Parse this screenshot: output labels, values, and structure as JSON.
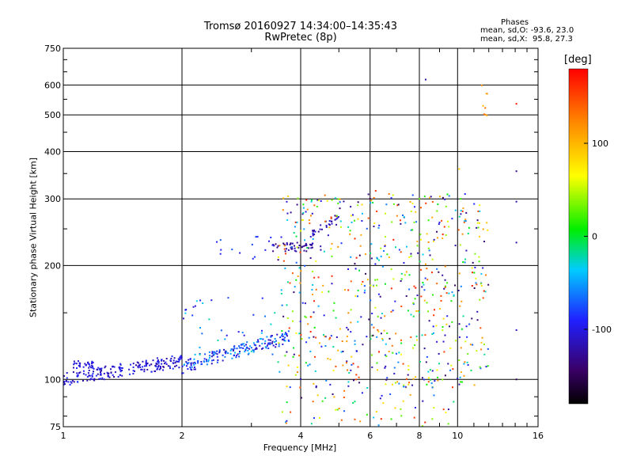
{
  "title_line1": "Tromsø 20160927 14:34:00–14:35:43",
  "title_line2": "RwPretec (8p)",
  "phases": {
    "title": "Phases",
    "o_mode": "mean, sd,O: -93.6, 23.0",
    "x_mode": "mean, sd,X:  95.8, 27.3"
  },
  "colorbar": {
    "label": "[deg]",
    "ticks": [
      "100",
      "0",
      "-100"
    ],
    "tick_values": [
      100,
      0,
      -100
    ],
    "range": [
      -180,
      180
    ]
  },
  "chart_data": {
    "type": "scatter",
    "xlabel": "Frequency [MHz]",
    "ylabel": "Stationary phase Virtual Height [km]",
    "xscale": "log",
    "yscale": "log",
    "xlim": [
      1,
      16
    ],
    "ylim": [
      75,
      750
    ],
    "x_ticks": [
      "1",
      "2",
      "4",
      "6",
      "8",
      "10",
      "16"
    ],
    "x_tick_values": [
      1,
      2,
      4,
      6,
      8,
      10,
      16
    ],
    "y_ticks": [
      "750",
      "600",
      "500",
      "400",
      "300",
      "200",
      "100",
      "75"
    ],
    "y_tick_values": [
      750,
      600,
      500,
      400,
      300,
      200,
      100,
      75
    ],
    "grid": true,
    "clusters": [
      {
        "name": "low-band",
        "x": [
          1.0,
          2.0
        ],
        "y": [
          100,
          112
        ],
        "phase": [
          -130,
          -80
        ],
        "n": 200
      },
      {
        "name": "low-band-upper",
        "x": [
          1.05,
          1.2
        ],
        "y": [
          107,
          112
        ],
        "phase": [
          -120,
          -90
        ],
        "n": 30
      },
      {
        "name": "mid-band",
        "x": [
          2.0,
          3.8
        ],
        "y": [
          108,
          130
        ],
        "phase": [
          -120,
          -40
        ],
        "n": 180
      },
      {
        "name": "mid-spread",
        "x": [
          2.0,
          3.5
        ],
        "y": [
          115,
          165
        ],
        "phase": [
          -110,
          -20
        ],
        "n": 40
      },
      {
        "name": "F-trace",
        "x": [
          3.4,
          4.5
        ],
        "y": [
          218,
          230
        ],
        "phase": [
          -140,
          -110
        ],
        "n": 50
      },
      {
        "name": "F-rise",
        "x": [
          4.2,
          5.0
        ],
        "y": [
          240,
          270
        ],
        "phase": [
          -130,
          -100
        ],
        "n": 30
      },
      {
        "name": "upper-sparse",
        "x": [
          2.4,
          3.4
        ],
        "y": [
          205,
          240
        ],
        "phase": [
          -100,
          -70
        ],
        "n": 15
      },
      {
        "name": "spread-F",
        "x": [
          3.5,
          12.0
        ],
        "y": [
          95,
          310
        ],
        "phase": [
          -150,
          170
        ],
        "n": 650
      },
      {
        "name": "low-scatter",
        "x": [
          3.5,
          10.0
        ],
        "y": [
          75,
          100
        ],
        "phase": [
          -150,
          170
        ],
        "n": 70
      },
      {
        "name": "high-echoes",
        "x": [
          11.5,
          12.0
        ],
        "y": [
          470,
          620
        ],
        "phase": [
          100,
          140
        ],
        "n": 8
      }
    ],
    "isolated_points": [
      {
        "x": 8.3,
        "y": 620,
        "phase": -120
      },
      {
        "x": 14.1,
        "y": 535,
        "phase": 170
      },
      {
        "x": 14.1,
        "y": 355,
        "phase": -130
      },
      {
        "x": 14.1,
        "y": 295,
        "phase": -120
      },
      {
        "x": 14.1,
        "y": 230,
        "phase": -120
      },
      {
        "x": 14.1,
        "y": 135,
        "phase": -110
      },
      {
        "x": 14.1,
        "y": 100,
        "phase": -150
      },
      {
        "x": 10.1,
        "y": 360,
        "phase": 90
      },
      {
        "x": 10.4,
        "y": 260,
        "phase": 140
      },
      {
        "x": 9.0,
        "y": 260,
        "phase": -100
      },
      {
        "x": 6.2,
        "y": 315,
        "phase": 160
      },
      {
        "x": 6.6,
        "y": 290,
        "phase": -60
      }
    ]
  }
}
